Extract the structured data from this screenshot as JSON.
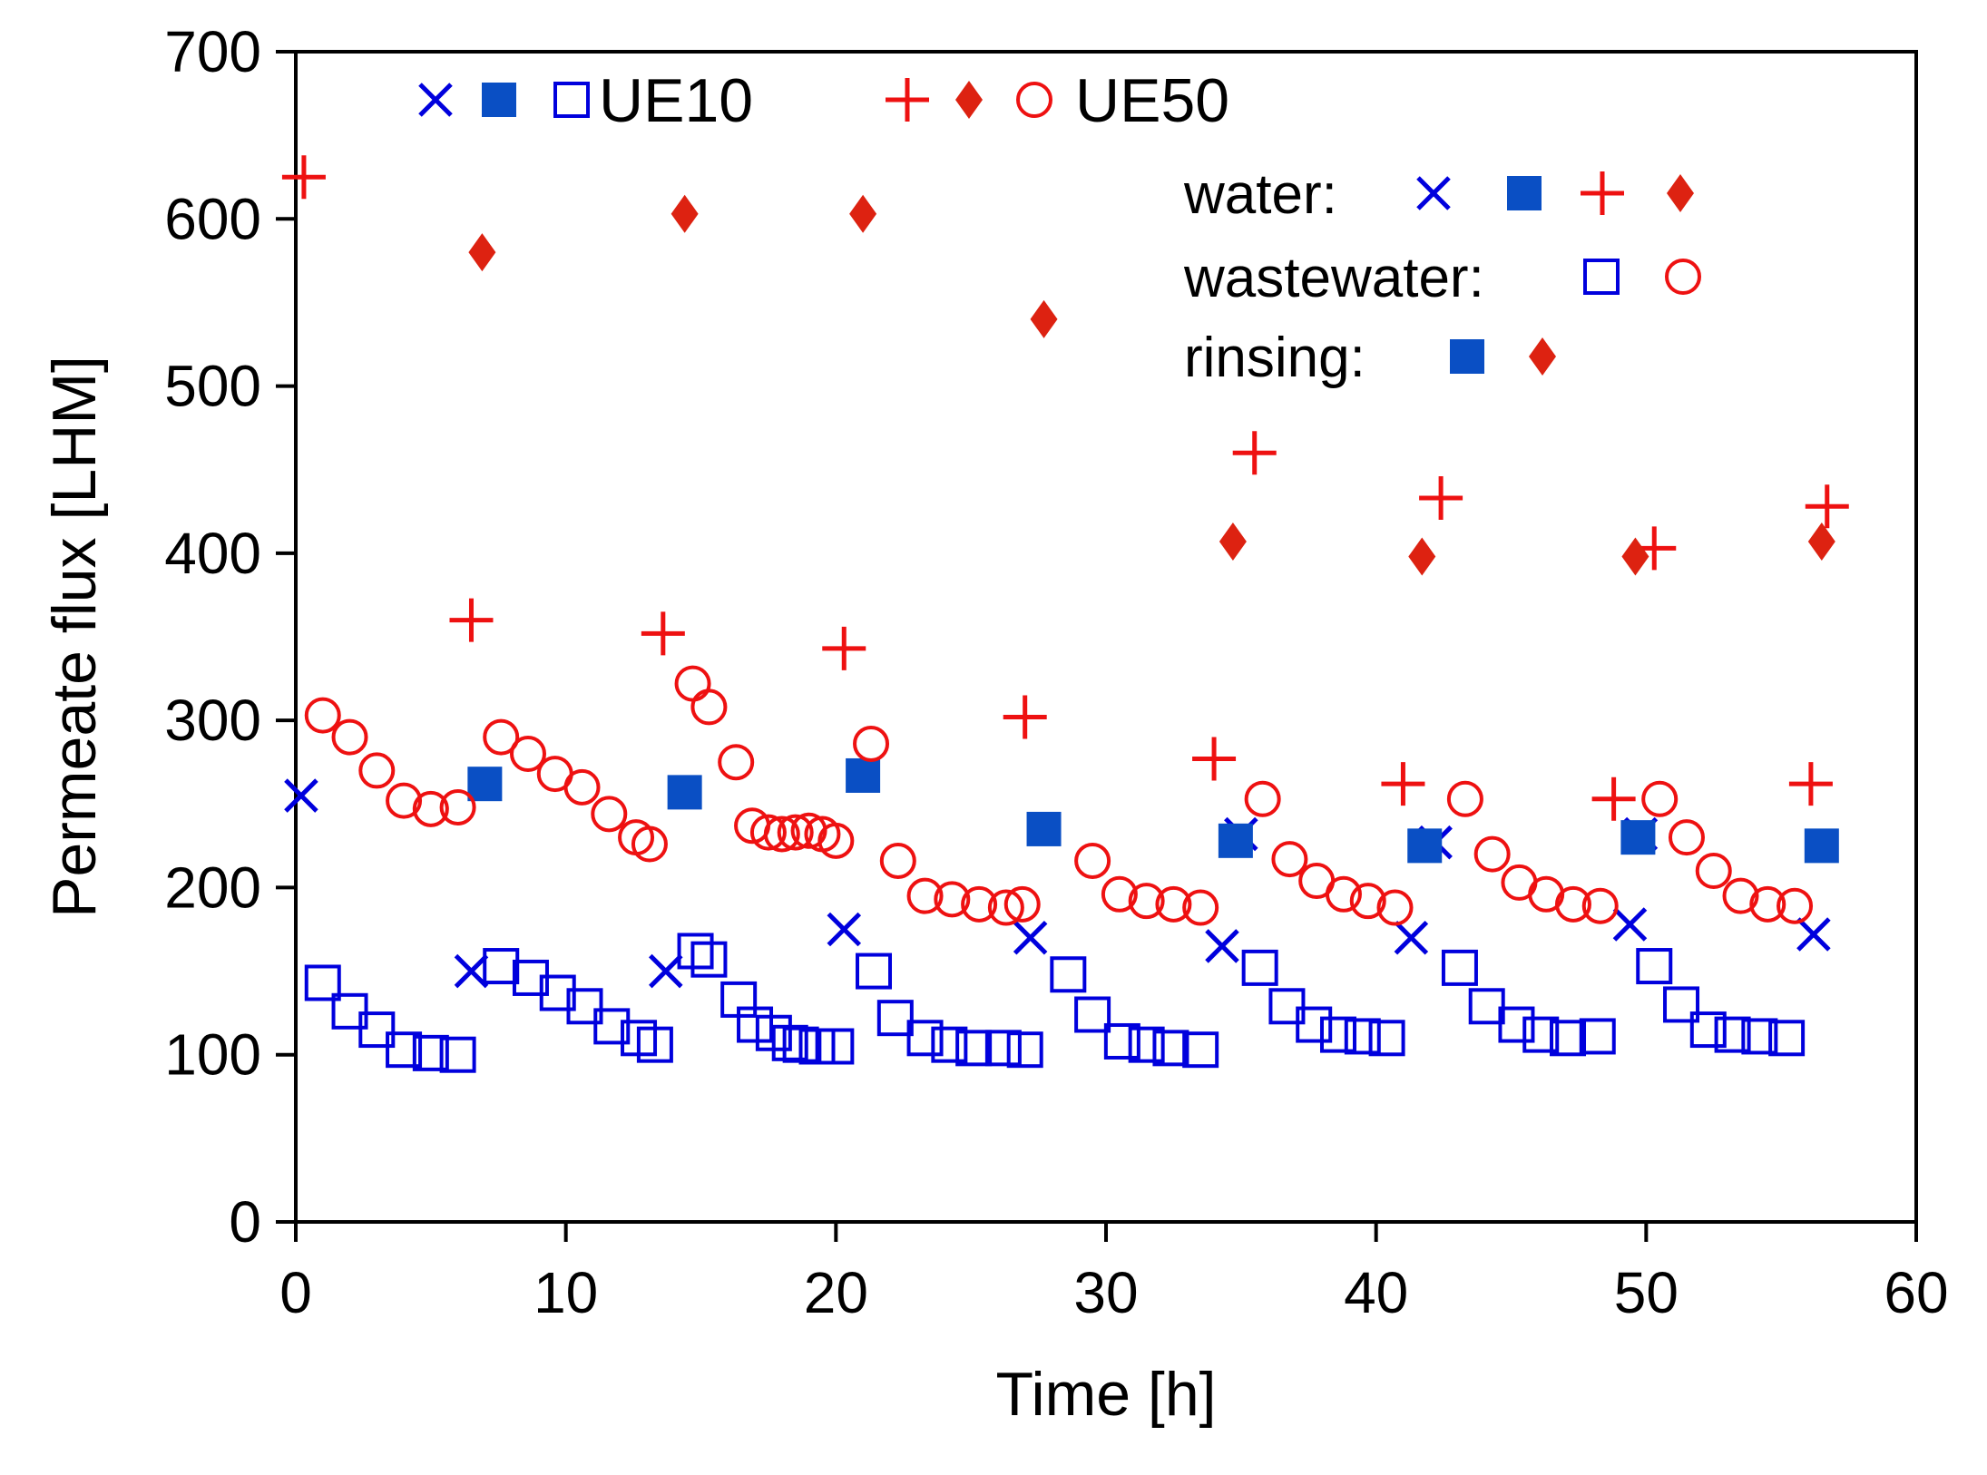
{
  "chart_data": {
    "type": "scatter",
    "title": "",
    "xlabel": "Time [h]",
    "ylabel": "Permeate flux [LHM]",
    "xlim": [
      0,
      60
    ],
    "ylim": [
      0,
      700
    ],
    "xticks": [
      0,
      10,
      20,
      30,
      40,
      50,
      60
    ],
    "yticks": [
      0,
      100,
      200,
      300,
      400,
      500,
      600,
      700
    ],
    "xtick_labels": [
      "0",
      "10",
      "20",
      "30",
      "40",
      "50",
      "60"
    ],
    "ytick_labels": [
      "0",
      "100",
      "200",
      "300",
      "400",
      "500",
      "600",
      "700"
    ],
    "grid": false,
    "colors": {
      "blue": "#0000dd",
      "blue_fill": "#0a4fc4",
      "red": "#ee1111",
      "red_fill": "#dd2211"
    },
    "legend": {
      "placement": "top",
      "membrane_rows": [
        {
          "label": "UE10",
          "markers": [
            "x",
            "filled-square",
            "open-square"
          ],
          "color": "blue"
        },
        {
          "label": "UE50",
          "markers": [
            "plus",
            "filled-diamond",
            "open-circle"
          ],
          "color": "red"
        }
      ],
      "type_rows": [
        {
          "label": "water:",
          "markers": [
            [
              "x",
              "blue"
            ],
            [
              "filled-square",
              "blue"
            ],
            [
              "plus",
              "red"
            ],
            [
              "filled-diamond",
              "red"
            ]
          ]
        },
        {
          "label": "wastewater:",
          "markers": [
            [
              "open-square",
              "blue"
            ],
            [
              "open-circle",
              "red"
            ]
          ]
        },
        {
          "label": "rinsing:",
          "markers": [
            [
              "filled-square",
              "blue"
            ],
            [
              "filled-diamond",
              "red"
            ]
          ]
        }
      ]
    },
    "series": [
      {
        "name": "UE10 water",
        "marker": "x",
        "color": "blue",
        "x": [
          0.2,
          6.5,
          13.7,
          20.3,
          27.2,
          34.3,
          35.0,
          41.3,
          42.2,
          49.4,
          49.8,
          56.2
        ],
        "y": [
          255,
          150,
          150,
          175,
          170,
          165,
          232,
          170,
          227,
          178,
          232,
          172
        ]
      },
      {
        "name": "UE10 rinsing",
        "marker": "filled-square",
        "color": "blue_fill",
        "x": [
          7.0,
          14.4,
          21.0,
          27.7,
          34.8,
          41.8,
          49.7,
          56.5
        ],
        "y": [
          262,
          257,
          267,
          235,
          228,
          225,
          230,
          225
        ]
      },
      {
        "name": "UE10 wastewater",
        "marker": "open-square",
        "color": "blue",
        "x": [
          1.0,
          2.0,
          3.0,
          4.0,
          5.0,
          6.0,
          7.6,
          8.7,
          9.7,
          10.7,
          11.7,
          12.7,
          13.3,
          14.8,
          15.3,
          16.4,
          17.0,
          17.7,
          18.3,
          18.7,
          19.3,
          20.0,
          21.4,
          22.2,
          23.3,
          24.2,
          25.1,
          26.2,
          27.0,
          28.6,
          29.5,
          30.6,
          31.5,
          32.4,
          33.5,
          35.7,
          36.7,
          37.7,
          38.6,
          39.5,
          40.4,
          43.1,
          44.1,
          45.2,
          46.1,
          47.1,
          48.2,
          50.3,
          51.3,
          52.3,
          53.2,
          54.2,
          55.2
        ],
        "y": [
          143,
          126,
          115,
          103,
          101,
          100,
          153,
          146,
          137,
          129,
          117,
          110,
          106,
          162,
          157,
          133,
          118,
          113,
          107,
          106,
          105,
          105,
          150,
          122,
          110,
          106,
          104,
          104,
          103,
          148,
          124,
          108,
          106,
          104,
          103,
          152,
          129,
          118,
          112,
          111,
          110,
          152,
          129,
          118,
          112,
          110,
          111,
          153,
          130,
          115,
          112,
          111,
          110
        ]
      },
      {
        "name": "UE50 water",
        "marker": "plus",
        "color": "red",
        "x": [
          0.3,
          6.5,
          13.6,
          20.3,
          27.0,
          34.0,
          35.5,
          41.0,
          42.4,
          48.8,
          50.3,
          56.1,
          56.7
        ],
        "y": [
          625,
          360,
          352,
          343,
          302,
          277,
          460,
          262,
          433,
          253,
          403,
          262,
          428
        ]
      },
      {
        "name": "UE50 rinsing",
        "marker": "filled-diamond",
        "color": "red_fill",
        "x": [
          6.9,
          14.4,
          21.0,
          27.7,
          34.7,
          41.7,
          49.6,
          56.5
        ],
        "y": [
          580,
          603,
          603,
          540,
          407,
          398,
          398,
          407
        ]
      },
      {
        "name": "UE50 wastewater",
        "marker": "open-circle",
        "color": "red",
        "x": [
          1.0,
          2.0,
          3.0,
          4.0,
          5.0,
          6.0,
          7.6,
          8.6,
          9.6,
          10.6,
          11.6,
          12.6,
          13.1,
          14.7,
          15.3,
          16.3,
          16.9,
          17.5,
          18.0,
          18.5,
          19.0,
          19.5,
          20.0,
          21.3,
          22.3,
          23.3,
          24.3,
          25.3,
          26.3,
          26.9,
          29.5,
          30.5,
          31.5,
          32.5,
          33.5,
          35.8,
          36.8,
          37.8,
          38.8,
          39.7,
          40.7,
          43.3,
          44.3,
          45.3,
          46.3,
          47.3,
          48.3,
          50.5,
          51.5,
          52.5,
          53.5,
          54.5,
          55.5
        ],
        "y": [
          303,
          290,
          270,
          252,
          247,
          248,
          290,
          280,
          268,
          260,
          244,
          230,
          226,
          322,
          308,
          275,
          237,
          233,
          232,
          233,
          234,
          232,
          228,
          286,
          216,
          195,
          193,
          190,
          188,
          190,
          216,
          196,
          192,
          190,
          188,
          253,
          217,
          204,
          196,
          192,
          188,
          253,
          220,
          203,
          196,
          190,
          189,
          253,
          230,
          210,
          195,
          190,
          189
        ]
      }
    ]
  }
}
